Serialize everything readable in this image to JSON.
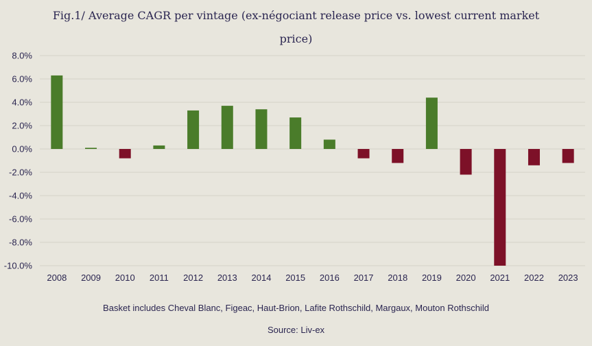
{
  "chart_data": {
    "type": "bar",
    "title": "Fig.1/ Average CAGR per vintage (ex-négociant release price vs. lowest current market price)",
    "xlabel": "",
    "ylabel": "",
    "categories": [
      "2008",
      "2009",
      "2010",
      "2011",
      "2012",
      "2013",
      "2014",
      "2015",
      "2016",
      "2017",
      "2018",
      "2019",
      "2020",
      "2021",
      "2022",
      "2023"
    ],
    "values": [
      6.3,
      0.1,
      -0.8,
      0.3,
      3.3,
      3.7,
      3.4,
      2.7,
      0.8,
      -0.8,
      -1.2,
      4.4,
      -2.2,
      -10.0,
      -1.4,
      -1.2
    ],
    "ylim": [
      -10,
      8
    ],
    "yticks": [
      8,
      6,
      4,
      2,
      0,
      -2,
      -4,
      -6,
      -8,
      -10
    ],
    "ytick_labels": [
      "8.0%",
      "6.0%",
      "4.0%",
      "2.0%",
      "0.0%",
      "-2.0%",
      "-4.0%",
      "-6.0%",
      "-8.0%",
      "-10.0%"
    ],
    "grid": true,
    "colors": {
      "positive": "#4a7c2a",
      "negative": "#7d1128",
      "grid": "#d4d2c8"
    }
  },
  "footnote": "Basket includes Cheval Blanc, Figeac, Haut-Brion, Lafite Rothschild, Margaux, Mouton Rothschild",
  "source": "Source: Liv-ex"
}
